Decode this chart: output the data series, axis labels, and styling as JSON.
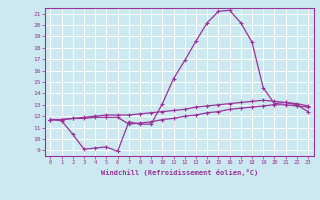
{
  "title": "",
  "xlabel": "Windchill (Refroidissement éolien,°C)",
  "bg_color": "#cce8f0",
  "grid_color": "#ffffff",
  "line_color": "#993399",
  "xlim": [
    -0.5,
    23.5
  ],
  "ylim": [
    8.5,
    21.5
  ],
  "xticks": [
    0,
    1,
    2,
    3,
    4,
    5,
    6,
    7,
    8,
    9,
    10,
    11,
    12,
    13,
    14,
    15,
    16,
    17,
    18,
    19,
    20,
    21,
    22,
    23
  ],
  "yticks": [
    9,
    10,
    11,
    12,
    13,
    14,
    15,
    16,
    17,
    18,
    19,
    20,
    21
  ],
  "line1_x": [
    0,
    1,
    2,
    3,
    4,
    5,
    6,
    7,
    8,
    9,
    10,
    11,
    12,
    13,
    14,
    15,
    16,
    17,
    18,
    19,
    20,
    21,
    22,
    23
  ],
  "line1_y": [
    11.7,
    11.6,
    10.4,
    9.1,
    9.2,
    9.3,
    8.9,
    11.5,
    11.3,
    11.3,
    13.1,
    15.3,
    16.9,
    18.6,
    20.2,
    21.2,
    21.3,
    20.2,
    18.5,
    14.5,
    13.1,
    13.2,
    13.0,
    12.4
  ],
  "line2_x": [
    0,
    1,
    2,
    3,
    4,
    5,
    6,
    7,
    8,
    9,
    10,
    11,
    12,
    13,
    14,
    15,
    16,
    17,
    18,
    19,
    20,
    21,
    22,
    23
  ],
  "line2_y": [
    11.7,
    11.7,
    11.8,
    11.8,
    11.9,
    11.9,
    11.9,
    11.3,
    11.4,
    11.5,
    11.7,
    11.8,
    12.0,
    12.1,
    12.3,
    12.4,
    12.6,
    12.7,
    12.8,
    12.9,
    13.0,
    13.0,
    12.9,
    12.8
  ],
  "line3_x": [
    0,
    1,
    2,
    3,
    4,
    5,
    6,
    7,
    8,
    9,
    10,
    11,
    12,
    13,
    14,
    15,
    16,
    17,
    18,
    19,
    20,
    21,
    22,
    23
  ],
  "line3_y": [
    11.7,
    11.7,
    11.8,
    11.9,
    12.0,
    12.1,
    12.1,
    12.1,
    12.2,
    12.3,
    12.4,
    12.5,
    12.6,
    12.8,
    12.9,
    13.0,
    13.1,
    13.2,
    13.3,
    13.4,
    13.3,
    13.2,
    13.1,
    12.9
  ]
}
